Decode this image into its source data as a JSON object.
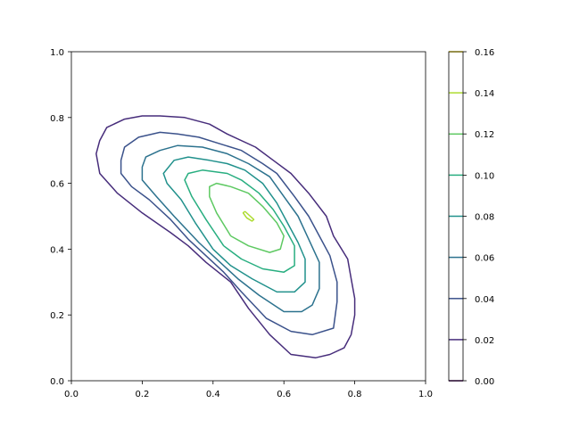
{
  "chart_data": {
    "type": "contour",
    "title": "",
    "xlabel": "",
    "ylabel": "",
    "xlim": [
      0,
      1
    ],
    "ylim": [
      0,
      1
    ],
    "x_ticks": [
      "0.0",
      "0.2",
      "0.4",
      "0.6",
      "0.8",
      "1.0"
    ],
    "y_ticks": [
      "0.0",
      "0.2",
      "0.4",
      "0.6",
      "0.8",
      "1.0"
    ],
    "colorbar": {
      "levels": [
        0.0,
        0.02,
        0.04,
        0.06,
        0.08,
        0.1,
        0.12,
        0.14,
        0.16
      ],
      "tick_labels": [
        "0.00",
        "0.02",
        "0.04",
        "0.06",
        "0.08",
        "0.10",
        "0.12",
        "0.14",
        "0.16"
      ],
      "colors": [
        "#440154",
        "#472d7b",
        "#3b528b",
        "#2c728e",
        "#21918c",
        "#28ae80",
        "#5ec962",
        "#addc30",
        "#fde725"
      ]
    },
    "contours": [
      {
        "level": 0.02,
        "color": "#472d7b",
        "closed": true,
        "points": [
          [
            0.28,
            0.45
          ],
          [
            0.33,
            0.41
          ],
          [
            0.38,
            0.36
          ],
          [
            0.45,
            0.3
          ],
          [
            0.5,
            0.22
          ],
          [
            0.56,
            0.14
          ],
          [
            0.62,
            0.08
          ],
          [
            0.69,
            0.07
          ],
          [
            0.73,
            0.08
          ],
          [
            0.77,
            0.1
          ],
          [
            0.79,
            0.14
          ],
          [
            0.8,
            0.2
          ],
          [
            0.8,
            0.25
          ],
          [
            0.79,
            0.31
          ],
          [
            0.78,
            0.37
          ],
          [
            0.74,
            0.44
          ],
          [
            0.72,
            0.5
          ],
          [
            0.67,
            0.57
          ],
          [
            0.62,
            0.63
          ],
          [
            0.57,
            0.67
          ],
          [
            0.52,
            0.71
          ],
          [
            0.44,
            0.75
          ],
          [
            0.39,
            0.78
          ],
          [
            0.32,
            0.8
          ],
          [
            0.25,
            0.805
          ],
          [
            0.2,
            0.805
          ],
          [
            0.15,
            0.795
          ],
          [
            0.1,
            0.77
          ],
          [
            0.08,
            0.73
          ],
          [
            0.07,
            0.69
          ],
          [
            0.08,
            0.63
          ],
          [
            0.13,
            0.57
          ],
          [
            0.2,
            0.51
          ],
          [
            0.28,
            0.45
          ]
        ]
      },
      {
        "level": 0.04,
        "color": "#3b528b",
        "closed": true,
        "points": [
          [
            0.33,
            0.43
          ],
          [
            0.38,
            0.38
          ],
          [
            0.43,
            0.33
          ],
          [
            0.48,
            0.27
          ],
          [
            0.55,
            0.19
          ],
          [
            0.62,
            0.15
          ],
          [
            0.68,
            0.14
          ],
          [
            0.74,
            0.16
          ],
          [
            0.75,
            0.24
          ],
          [
            0.75,
            0.3
          ],
          [
            0.73,
            0.38
          ],
          [
            0.7,
            0.44
          ],
          [
            0.67,
            0.5
          ],
          [
            0.63,
            0.56
          ],
          [
            0.58,
            0.63
          ],
          [
            0.54,
            0.66
          ],
          [
            0.48,
            0.7
          ],
          [
            0.42,
            0.72
          ],
          [
            0.36,
            0.74
          ],
          [
            0.3,
            0.75
          ],
          [
            0.25,
            0.755
          ],
          [
            0.19,
            0.74
          ],
          [
            0.15,
            0.71
          ],
          [
            0.14,
            0.67
          ],
          [
            0.14,
            0.63
          ],
          [
            0.17,
            0.59
          ],
          [
            0.22,
            0.55
          ],
          [
            0.28,
            0.49
          ],
          [
            0.33,
            0.43
          ]
        ]
      },
      {
        "level": 0.06,
        "color": "#2c728e",
        "closed": true,
        "points": [
          [
            0.36,
            0.42
          ],
          [
            0.42,
            0.36
          ],
          [
            0.47,
            0.31
          ],
          [
            0.53,
            0.26
          ],
          [
            0.6,
            0.21
          ],
          [
            0.65,
            0.21
          ],
          [
            0.68,
            0.23
          ],
          [
            0.7,
            0.28
          ],
          [
            0.7,
            0.36
          ],
          [
            0.67,
            0.43
          ],
          [
            0.64,
            0.5
          ],
          [
            0.6,
            0.56
          ],
          [
            0.56,
            0.62
          ],
          [
            0.5,
            0.66
          ],
          [
            0.44,
            0.69
          ],
          [
            0.37,
            0.71
          ],
          [
            0.3,
            0.715
          ],
          [
            0.25,
            0.7
          ],
          [
            0.21,
            0.68
          ],
          [
            0.2,
            0.65
          ],
          [
            0.2,
            0.61
          ],
          [
            0.24,
            0.56
          ],
          [
            0.29,
            0.5
          ],
          [
            0.36,
            0.42
          ]
        ]
      },
      {
        "level": 0.08,
        "color": "#21918c",
        "closed": true,
        "points": [
          [
            0.4,
            0.4
          ],
          [
            0.45,
            0.35
          ],
          [
            0.51,
            0.31
          ],
          [
            0.58,
            0.27
          ],
          [
            0.63,
            0.27
          ],
          [
            0.66,
            0.3
          ],
          [
            0.66,
            0.37
          ],
          [
            0.64,
            0.42
          ],
          [
            0.61,
            0.48
          ],
          [
            0.58,
            0.54
          ],
          [
            0.54,
            0.6
          ],
          [
            0.49,
            0.64
          ],
          [
            0.44,
            0.66
          ],
          [
            0.39,
            0.67
          ],
          [
            0.33,
            0.68
          ],
          [
            0.29,
            0.67
          ],
          [
            0.26,
            0.63
          ],
          [
            0.27,
            0.6
          ],
          [
            0.31,
            0.55
          ],
          [
            0.35,
            0.48
          ],
          [
            0.4,
            0.4
          ]
        ]
      },
      {
        "level": 0.1,
        "color": "#28ae80",
        "closed": true,
        "points": [
          [
            0.43,
            0.41
          ],
          [
            0.48,
            0.37
          ],
          [
            0.54,
            0.34
          ],
          [
            0.6,
            0.33
          ],
          [
            0.63,
            0.35
          ],
          [
            0.63,
            0.41
          ],
          [
            0.6,
            0.47
          ],
          [
            0.57,
            0.52
          ],
          [
            0.53,
            0.57
          ],
          [
            0.48,
            0.61
          ],
          [
            0.44,
            0.63
          ],
          [
            0.37,
            0.64
          ],
          [
            0.33,
            0.63
          ],
          [
            0.32,
            0.61
          ],
          [
            0.34,
            0.56
          ],
          [
            0.38,
            0.49
          ],
          [
            0.43,
            0.41
          ]
        ]
      },
      {
        "level": 0.12,
        "color": "#5ec962",
        "closed": true,
        "points": [
          [
            0.45,
            0.44
          ],
          [
            0.5,
            0.41
          ],
          [
            0.56,
            0.39
          ],
          [
            0.59,
            0.4
          ],
          [
            0.6,
            0.44
          ],
          [
            0.58,
            0.48
          ],
          [
            0.54,
            0.53
          ],
          [
            0.5,
            0.57
          ],
          [
            0.45,
            0.59
          ],
          [
            0.41,
            0.6
          ],
          [
            0.39,
            0.59
          ],
          [
            0.39,
            0.56
          ],
          [
            0.41,
            0.51
          ],
          [
            0.45,
            0.44
          ]
        ]
      },
      {
        "level": 0.14,
        "color": "#addc30",
        "closed": true,
        "points": [
          [
            0.49,
            0.515
          ],
          [
            0.505,
            0.5
          ],
          [
            0.515,
            0.49
          ],
          [
            0.51,
            0.485
          ],
          [
            0.495,
            0.495
          ],
          [
            0.485,
            0.51
          ],
          [
            0.49,
            0.515
          ]
        ]
      }
    ]
  }
}
